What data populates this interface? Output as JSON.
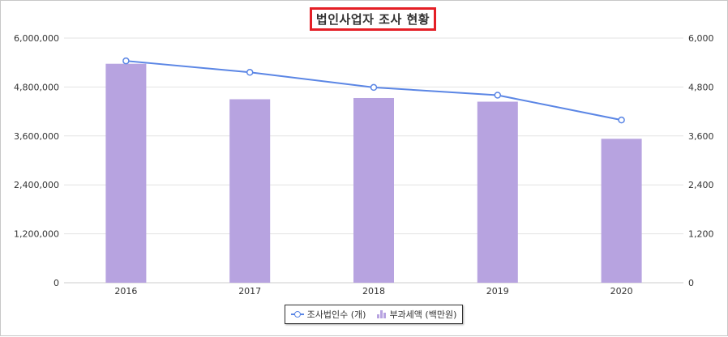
{
  "chart_data": {
    "type": "bar",
    "title": "법인사업자 조사 현황",
    "categories": [
      "2016",
      "2017",
      "2018",
      "2019",
      "2020"
    ],
    "series": [
      {
        "name": "부과세액 (백만원)",
        "type": "bar",
        "axis": "left",
        "color": "#b7a3e0",
        "values": [
          5370000,
          4500000,
          4530000,
          4440000,
          3530000
        ]
      },
      {
        "name": "조사법인수 (개)",
        "type": "line",
        "axis": "right",
        "color": "#5b86e5",
        "values": [
          5440,
          5160,
          4790,
          4600,
          3990
        ]
      }
    ],
    "y_left": {
      "min": 0,
      "max": 6000000,
      "ticks": [
        "0",
        "1,200,000",
        "2,400,000",
        "3,600,000",
        "4,800,000",
        "6,000,000"
      ]
    },
    "y_right": {
      "min": 0,
      "max": 6000,
      "ticks": [
        "0",
        "1,200",
        "2,400",
        "3,600",
        "4,800",
        "6,000"
      ]
    },
    "grid": true,
    "legend_position": "bottom-center"
  }
}
